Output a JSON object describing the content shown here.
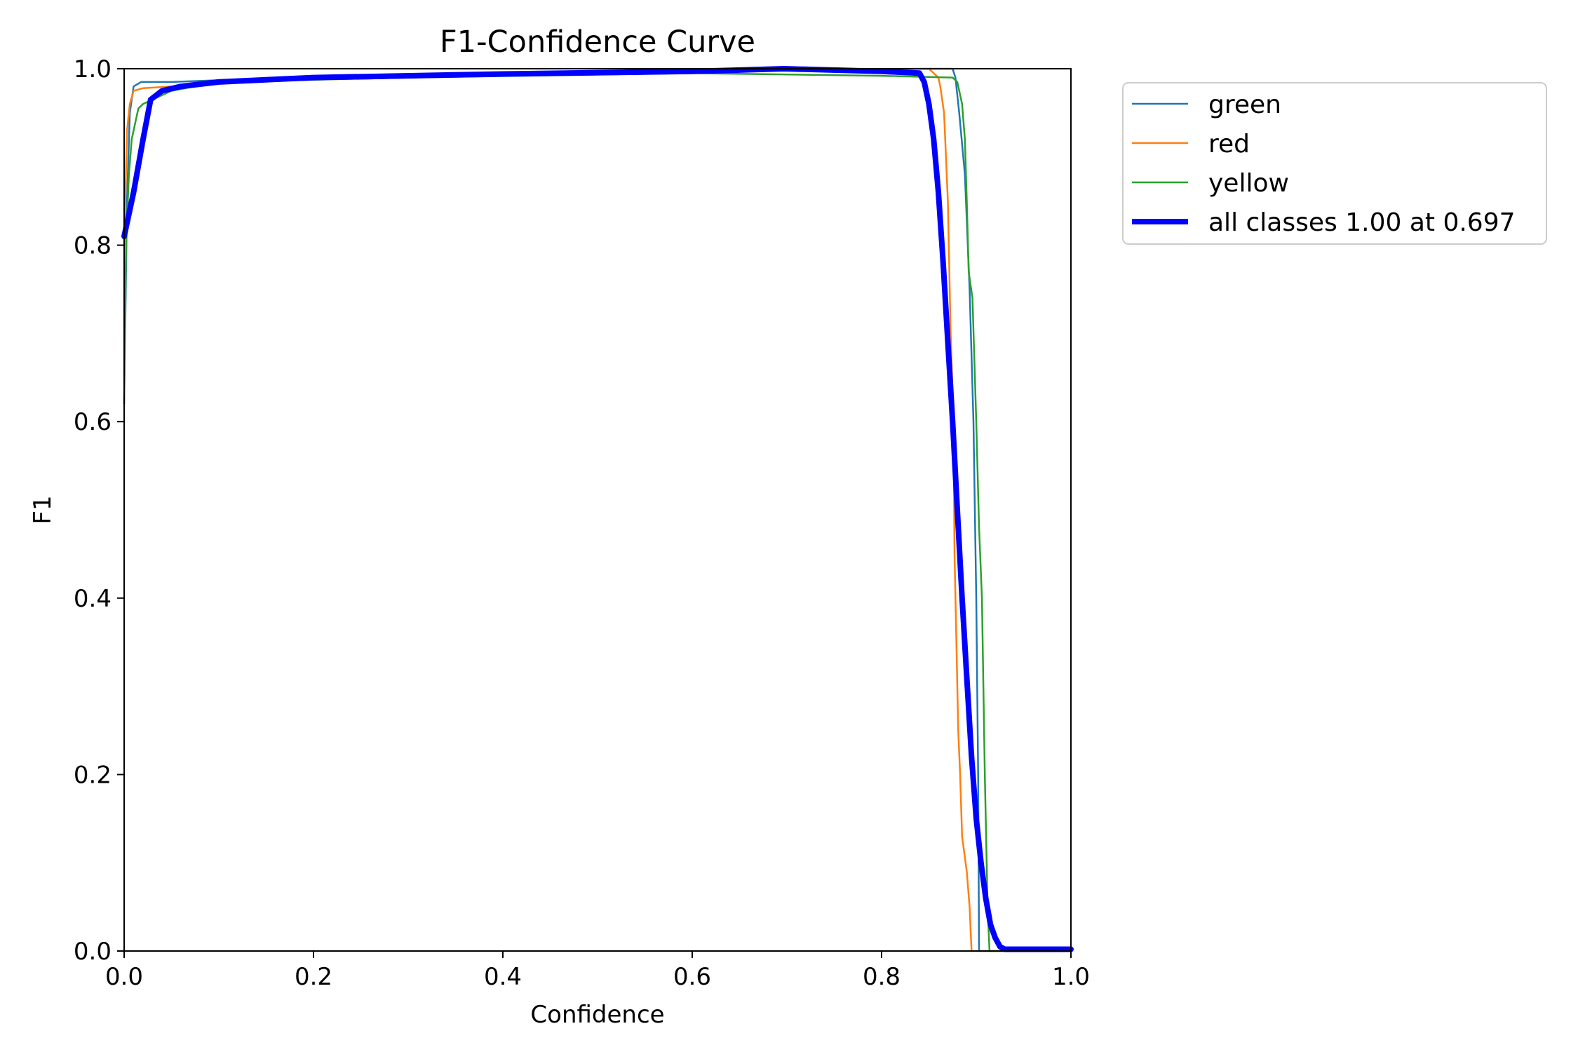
{
  "chart_data": {
    "type": "line",
    "title": "F1-Confidence Curve",
    "xlabel": "Confidence",
    "ylabel": "F1",
    "xlim": [
      0,
      1
    ],
    "ylim": [
      0,
      1
    ],
    "grid": false,
    "legend_placement": "outside-top-right",
    "x_ticks": [
      "0.0",
      "0.2",
      "0.4",
      "0.6",
      "0.8",
      "1.0"
    ],
    "y_ticks": [
      "0.0",
      "0.2",
      "0.4",
      "0.6",
      "0.8",
      "1.0"
    ],
    "series": [
      {
        "name": "green",
        "color": "#1f77b4",
        "width": "thin",
        "points": [
          [
            0,
            0.62
          ],
          [
            0.003,
            0.85
          ],
          [
            0.006,
            0.95
          ],
          [
            0.01,
            0.98
          ],
          [
            0.018,
            0.985
          ],
          [
            0.05,
            0.985
          ],
          [
            0.1,
            0.987
          ],
          [
            0.2,
            0.99
          ],
          [
            0.4,
            0.995
          ],
          [
            0.6,
            0.998
          ],
          [
            0.85,
            1.0
          ],
          [
            0.875,
            1.0
          ],
          [
            0.878,
            0.99
          ],
          [
            0.882,
            0.95
          ],
          [
            0.888,
            0.88
          ],
          [
            0.893,
            0.75
          ],
          [
            0.897,
            0.6
          ],
          [
            0.9,
            0.4
          ],
          [
            0.902,
            0.2
          ],
          [
            0.903,
            0.0
          ],
          [
            1.0,
            0.0
          ]
        ]
      },
      {
        "name": "red",
        "color": "#ff7f0e",
        "width": "thin",
        "points": [
          [
            0,
            0.8
          ],
          [
            0.003,
            0.93
          ],
          [
            0.006,
            0.96
          ],
          [
            0.01,
            0.975
          ],
          [
            0.02,
            0.978
          ],
          [
            0.05,
            0.98
          ],
          [
            0.1,
            0.985
          ],
          [
            0.3,
            0.99
          ],
          [
            0.6,
            0.998
          ],
          [
            0.85,
            1.0
          ],
          [
            0.86,
            0.99
          ],
          [
            0.862,
            0.98
          ],
          [
            0.866,
            0.95
          ],
          [
            0.87,
            0.85
          ],
          [
            0.873,
            0.7
          ],
          [
            0.876,
            0.6
          ],
          [
            0.877,
            0.45
          ],
          [
            0.879,
            0.35
          ],
          [
            0.881,
            0.25
          ],
          [
            0.883,
            0.2
          ],
          [
            0.885,
            0.13
          ],
          [
            0.89,
            0.09
          ],
          [
            0.893,
            0.05
          ],
          [
            0.895,
            0.0
          ],
          [
            1.0,
            0.0
          ]
        ]
      },
      {
        "name": "yellow",
        "color": "#2ca02c",
        "width": "thin",
        "points": [
          [
            0,
            0.62
          ],
          [
            0.002,
            0.8
          ],
          [
            0.005,
            0.88
          ],
          [
            0.008,
            0.92
          ],
          [
            0.012,
            0.94
          ],
          [
            0.015,
            0.955
          ],
          [
            0.02,
            0.96
          ],
          [
            0.03,
            0.965
          ],
          [
            0.05,
            0.975
          ],
          [
            0.1,
            0.985
          ],
          [
            0.3,
            0.99
          ],
          [
            0.6,
            0.995
          ],
          [
            0.8,
            0.992
          ],
          [
            0.875,
            0.99
          ],
          [
            0.88,
            0.985
          ],
          [
            0.885,
            0.96
          ],
          [
            0.888,
            0.92
          ],
          [
            0.89,
            0.85
          ],
          [
            0.892,
            0.77
          ],
          [
            0.896,
            0.74
          ],
          [
            0.9,
            0.6
          ],
          [
            0.903,
            0.48
          ],
          [
            0.906,
            0.4
          ],
          [
            0.909,
            0.2
          ],
          [
            0.912,
            0.05
          ],
          [
            0.914,
            0.0
          ],
          [
            1.0,
            0.0
          ]
        ]
      },
      {
        "name": "all classes 1.00 at 0.697",
        "color": "#0000ff",
        "width": "thick",
        "points": [
          [
            0,
            0.81
          ],
          [
            0.01,
            0.86
          ],
          [
            0.02,
            0.92
          ],
          [
            0.028,
            0.965
          ],
          [
            0.04,
            0.975
          ],
          [
            0.06,
            0.98
          ],
          [
            0.1,
            0.985
          ],
          [
            0.2,
            0.99
          ],
          [
            0.4,
            0.994
          ],
          [
            0.6,
            0.997
          ],
          [
            0.697,
            1.0
          ],
          [
            0.8,
            0.997
          ],
          [
            0.84,
            0.995
          ],
          [
            0.845,
            0.985
          ],
          [
            0.85,
            0.96
          ],
          [
            0.855,
            0.92
          ],
          [
            0.86,
            0.86
          ],
          [
            0.865,
            0.78
          ],
          [
            0.87,
            0.69
          ],
          [
            0.875,
            0.6
          ],
          [
            0.88,
            0.5
          ],
          [
            0.885,
            0.4
          ],
          [
            0.89,
            0.31
          ],
          [
            0.895,
            0.22
          ],
          [
            0.9,
            0.15
          ],
          [
            0.905,
            0.1
          ],
          [
            0.91,
            0.06
          ],
          [
            0.915,
            0.03
          ],
          [
            0.92,
            0.015
          ],
          [
            0.925,
            0.005
          ],
          [
            0.93,
            0.002
          ],
          [
            1.0,
            0.002
          ]
        ]
      }
    ]
  }
}
